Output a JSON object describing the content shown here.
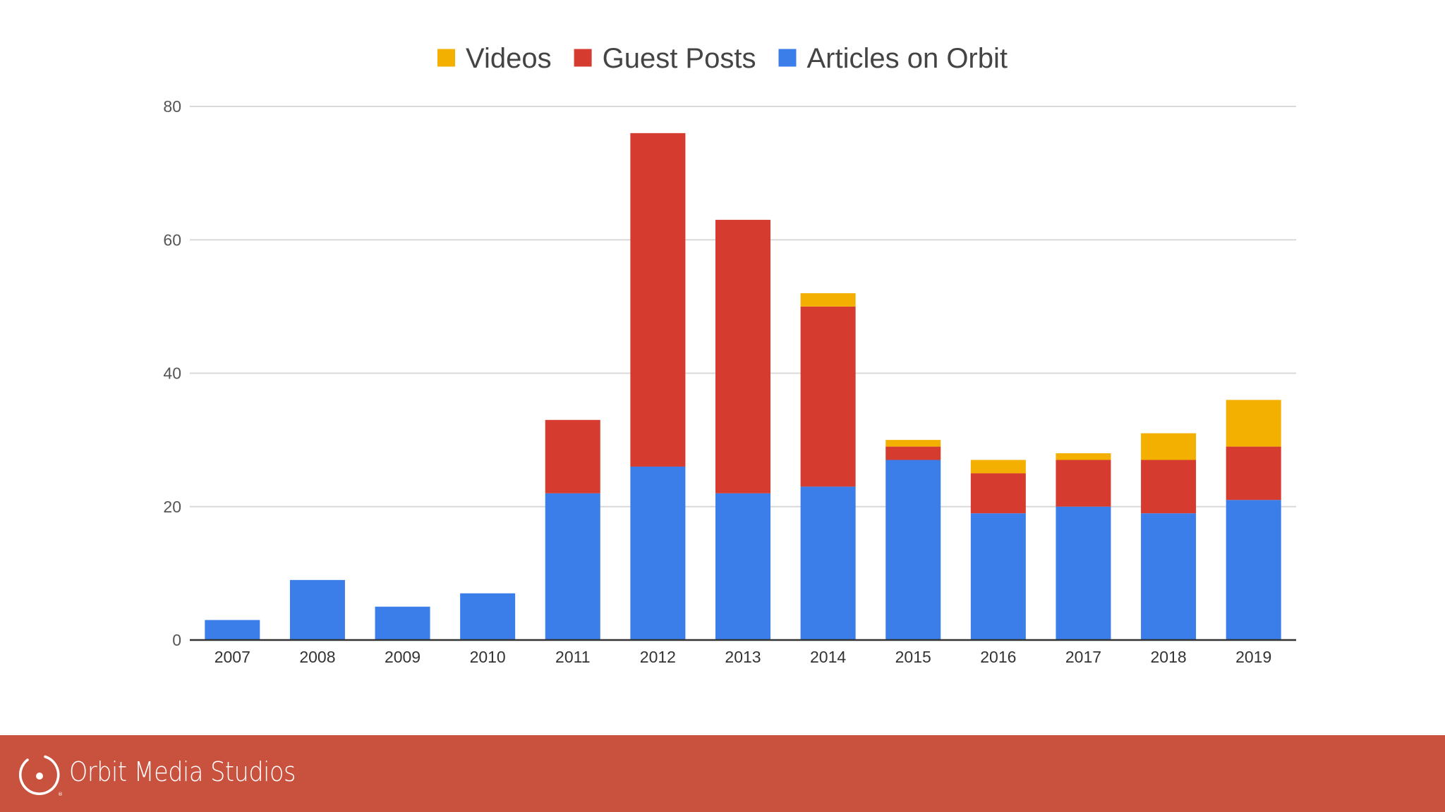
{
  "chart_data": {
    "type": "bar",
    "stacked": true,
    "title": "",
    "xlabel": "",
    "ylabel": "",
    "categories": [
      "2007",
      "2008",
      "2009",
      "2010",
      "2011",
      "2012",
      "2013",
      "2014",
      "2015",
      "2016",
      "2017",
      "2018",
      "2019"
    ],
    "series": [
      {
        "name": "Articles on Orbit",
        "color": "#3b7de9",
        "values": [
          3,
          9,
          5,
          7,
          22,
          26,
          22,
          23,
          27,
          19,
          20,
          19,
          21
        ]
      },
      {
        "name": "Guest Posts",
        "color": "#d63b30",
        "values": [
          0,
          0,
          0,
          0,
          11,
          50,
          41,
          27,
          2,
          6,
          7,
          8,
          8
        ]
      },
      {
        "name": "Videos",
        "color": "#f4b000",
        "values": [
          0,
          0,
          0,
          0,
          0,
          0,
          0,
          2,
          1,
          2,
          1,
          4,
          7
        ]
      }
    ],
    "legend_order": [
      "Videos",
      "Guest Posts",
      "Articles on Orbit"
    ],
    "legend_position": "top",
    "ylim": [
      0,
      80
    ],
    "yticks": [
      0,
      20,
      40,
      60,
      80
    ],
    "grid": true
  },
  "footer": {
    "brand_name": "Orbit Media Studios",
    "logo_icon": "orbit-logo-icon",
    "background_color": "#c9523f"
  }
}
